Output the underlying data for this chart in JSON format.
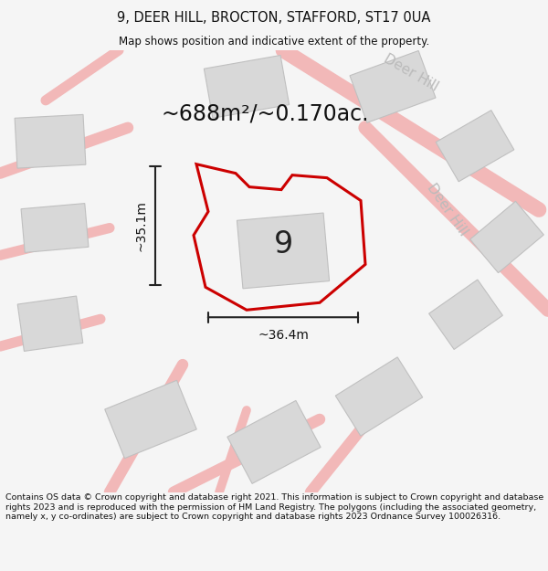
{
  "title_line1": "9, DEER HILL, BROCTON, STAFFORD, ST17 0UA",
  "title_line2": "Map shows position and indicative extent of the property.",
  "area_text": "~688m²/~0.170ac.",
  "dim_vertical": "~35.1m",
  "dim_horizontal": "~36.4m",
  "label_9": "9",
  "road_label_top": "Deer Hill",
  "road_label_right": "Deer Hill",
  "footer_text": "Contains OS data © Crown copyright and database right 2021. This information is subject to Crown copyright and database rights 2023 and is reproduced with the permission of HM Land Registry. The polygons (including the associated geometry, namely x, y co-ordinates) are subject to Crown copyright and database rights 2023 Ordnance Survey 100026316.",
  "bg_color": "#f5f5f5",
  "map_bg_color": "#ffffff",
  "road_color": "#f2b8b8",
  "building_color": "#d8d8d8",
  "building_edge_color": "#c0c0c0"
}
